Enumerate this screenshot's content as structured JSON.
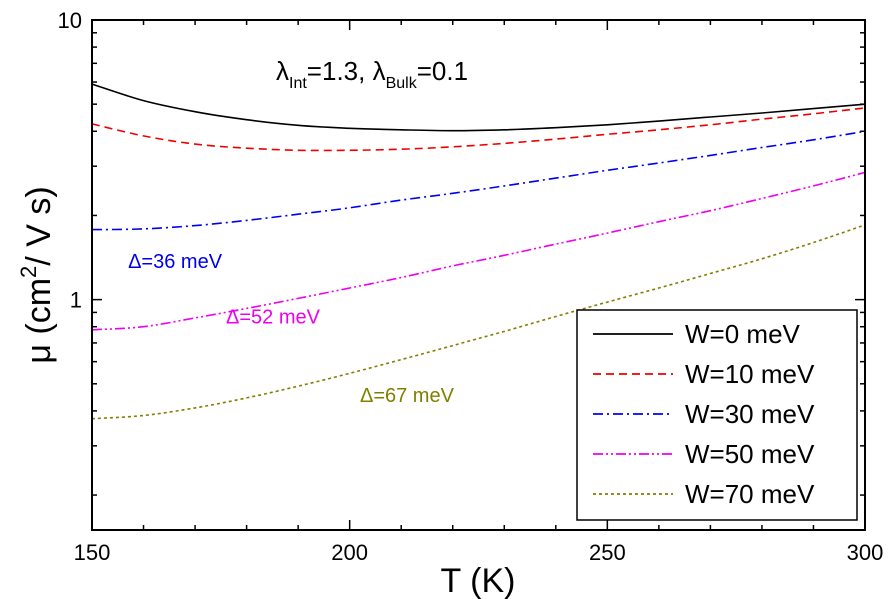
{
  "chart_data": {
    "type": "line",
    "xlabel": "T (K)",
    "ylabel": "μ (cm²/ V s)",
    "ylabel_parts": {
      "main": "μ (cm",
      "sup": "2",
      "tail": "/ V s)"
    },
    "xlim": [
      150,
      300
    ],
    "ylim": [
      0.15,
      10
    ],
    "yscale": "log",
    "grid": false,
    "x_ticks": [
      "150",
      "200",
      "250",
      "300"
    ],
    "y_ticks": [
      "1",
      "10"
    ],
    "legend_position": "bottom-right",
    "annotation_params": {
      "lam1": "λ",
      "sub1": "Int",
      "val1": "=1.3, ",
      "lam2": "λ",
      "sub2": "Bulk",
      "val2": "=0.1"
    },
    "annotations": [
      {
        "text": "Δ=36 meV",
        "color": "#0000ee",
        "x": 157,
        "y": 1.3
      },
      {
        "text": "Δ=52 meV",
        "color": "#ee00ee",
        "x": 176,
        "y": 0.82
      },
      {
        "text": "Δ=67 meV",
        "color": "#808000",
        "x": 202,
        "y": 0.43
      }
    ],
    "series": [
      {
        "name": "W=0 meV",
        "color": "#000000",
        "dash": "",
        "x": [
          150,
          160,
          170,
          180,
          190,
          200,
          210,
          220,
          230,
          240,
          250,
          260,
          270,
          280,
          290,
          300
        ],
        "y": [
          5.9,
          5.15,
          4.7,
          4.4,
          4.2,
          4.1,
          4.05,
          4.02,
          4.05,
          4.12,
          4.22,
          4.35,
          4.5,
          4.65,
          4.82,
          5.0
        ]
      },
      {
        "name": "W=10 meV",
        "color": "#ee0000",
        "dash": "8 5",
        "x": [
          150,
          160,
          170,
          180,
          190,
          200,
          210,
          220,
          230,
          240,
          250,
          260,
          270,
          280,
          290,
          300
        ],
        "y": [
          4.25,
          3.85,
          3.6,
          3.48,
          3.42,
          3.42,
          3.45,
          3.52,
          3.62,
          3.75,
          3.9,
          4.05,
          4.22,
          4.42,
          4.62,
          4.85
        ]
      },
      {
        "name": "W=30 meV",
        "color": "#0000ee",
        "dash": "10 4 2 4",
        "x": [
          150,
          160,
          170,
          180,
          190,
          200,
          210,
          220,
          230,
          240,
          250,
          260,
          270,
          280,
          290,
          300
        ],
        "y": [
          1.78,
          1.79,
          1.84,
          1.92,
          2.02,
          2.13,
          2.27,
          2.4,
          2.55,
          2.72,
          2.9,
          3.08,
          3.28,
          3.5,
          3.73,
          4.0
        ]
      },
      {
        "name": "W=50 meV",
        "color": "#ee00ee",
        "dash": "10 3 2 3 2 3",
        "x": [
          150,
          160,
          170,
          180,
          190,
          200,
          210,
          220,
          230,
          240,
          250,
          260,
          270,
          280,
          290,
          300
        ],
        "y": [
          0.78,
          0.8,
          0.86,
          0.93,
          1.01,
          1.1,
          1.2,
          1.32,
          1.44,
          1.58,
          1.73,
          1.9,
          2.08,
          2.3,
          2.55,
          2.85
        ]
      },
      {
        "name": "W=70 meV",
        "color": "#808000",
        "dash": "3 3",
        "x": [
          150,
          160,
          170,
          180,
          190,
          200,
          210,
          220,
          230,
          240,
          250,
          260,
          270,
          280,
          290,
          300
        ],
        "y": [
          0.375,
          0.385,
          0.41,
          0.445,
          0.49,
          0.545,
          0.61,
          0.685,
          0.77,
          0.87,
          0.98,
          1.1,
          1.24,
          1.4,
          1.6,
          1.85
        ]
      }
    ]
  }
}
